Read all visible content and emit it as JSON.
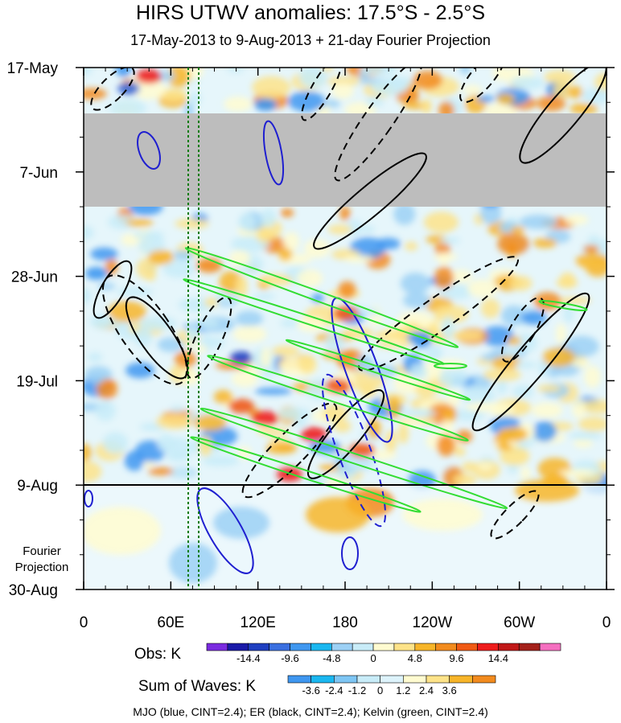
{
  "title": "HIRS UTWV anomalies: 17.5°S - 2.5°S",
  "subtitle": "17-May-2013 to 9-Aug-2013 + 21-day Fourier Projection",
  "footer": "MJO (blue, CINT=2.4); ER (black, CINT=2.4); Kelvin (green, CINT=2.4)",
  "projection_label": [
    "Fourier",
    "Projection"
  ],
  "chart_data": {
    "type": "heatmap",
    "title": "HIRS UTWV anomalies: 17.5°S - 2.5°S",
    "xlabel": "",
    "ylabel": "",
    "x_ticks": [
      "0",
      "60E",
      "120E",
      "180",
      "120W",
      "60W",
      "0"
    ],
    "y_ticks": [
      "17-May",
      "7-Jun",
      "28-Jun",
      "19-Jul",
      "9-Aug",
      "30-Aug"
    ],
    "x_range": [
      "0",
      "0"
    ],
    "y_range": [
      "17-May",
      "30-Aug"
    ],
    "observation_end": "9-Aug",
    "missing_data_period": [
      "26-May",
      "13-Jun"
    ],
    "obs_colorbar": {
      "label": "Obs: K",
      "tick_labels": [
        "-14.4",
        "-9.6",
        "-4.8",
        "0",
        "4.8",
        "9.6",
        "14.4"
      ],
      "colors": [
        "#7a2be0",
        "#1a1aa8",
        "#1f3fc0",
        "#3a6fe0",
        "#3f97f0",
        "#1ab7f0",
        "#9cd0f5",
        "#c8ecf8",
        "#fffbd0",
        "#fde389",
        "#f7b529",
        "#f28b1e",
        "#f05a14",
        "#ee1c1c",
        "#c01818",
        "#a3201a",
        "#f56fc0"
      ]
    },
    "waves_colorbar": {
      "label": "Sum of Waves: K",
      "tick_labels": [
        "-3.6",
        "-2.4",
        "-1.2",
        "0",
        "1.2",
        "2.4",
        "3.6"
      ],
      "colors": [
        "#3f97f0",
        "#1ab7f0",
        "#7ec6f4",
        "#c8ecf8",
        "#ddf3fb",
        "#fffbd0",
        "#fde389",
        "#f7b529",
        "#f28b1e"
      ]
    },
    "contours": [
      {
        "name": "MJO",
        "color": "#1f1fd0",
        "cint": 2.4
      },
      {
        "name": "ER",
        "color": "#000000",
        "cint": 2.4
      },
      {
        "name": "Kelvin",
        "color": "#33dd33",
        "cint": 2.4
      }
    ],
    "reference_lines": [
      {
        "type": "horizontal",
        "at": "9-Aug",
        "color": "#000000"
      },
      {
        "type": "vertical",
        "at_lon": "72E",
        "color": "#0a7a0a",
        "style": "dotted"
      },
      {
        "type": "vertical",
        "at_lon": "78E",
        "color": "#0a7a0a",
        "style": "dotted"
      }
    ]
  }
}
